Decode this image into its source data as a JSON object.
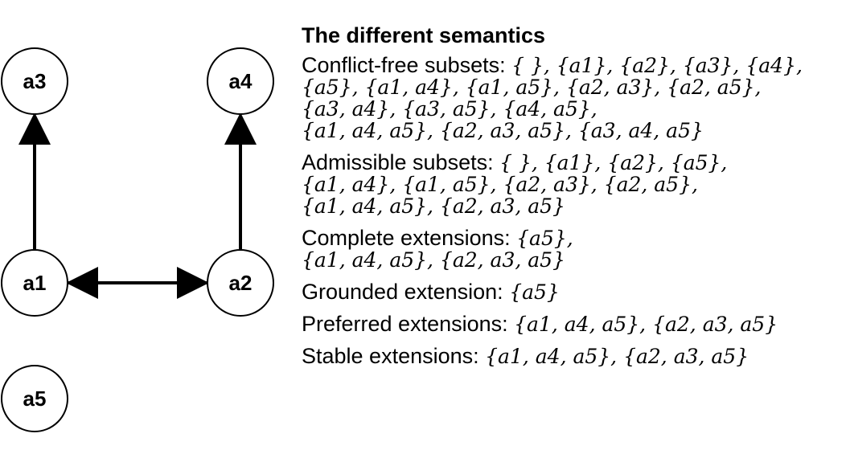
{
  "graph": {
    "nodes": [
      {
        "id": "a1",
        "label": "a1"
      },
      {
        "id": "a2",
        "label": "a2"
      },
      {
        "id": "a3",
        "label": "a3"
      },
      {
        "id": "a4",
        "label": "a4"
      },
      {
        "id": "a5",
        "label": "a5"
      }
    ],
    "edges": [
      {
        "from": "a1",
        "to": "a3"
      },
      {
        "from": "a2",
        "to": "a4"
      },
      {
        "from": "a1",
        "to": "a2"
      },
      {
        "from": "a2",
        "to": "a1"
      }
    ]
  },
  "panel": {
    "title": "The different semantics",
    "sections": [
      {
        "label": "Conflict-free subsets:",
        "lines": [
          "{ }, {a1}, {a2}, {a3}, {a4},",
          "{a5}, {a1, a4}, {a1, a5}, {a2, a3}, {a2, a5},",
          "{a3, a4}, {a3, a5}, {a4, a5},",
          "{a1, a4, a5}, {a2, a3, a5}, {a3, a4, a5}"
        ]
      },
      {
        "label": "Admissible subsets:",
        "lines": [
          "{ }, {a1}, {a2}, {a5},",
          "{a1, a4}, {a1, a5}, {a2, a3}, {a2, a5},",
          "{a1, a4, a5}, {a2, a3, a5}"
        ]
      },
      {
        "label": "Complete extensions:",
        "lines": [
          "{a5},",
          "{a1, a4, a5}, {a2, a3, a5}"
        ]
      },
      {
        "label": "Grounded extension:",
        "lines": [
          "{a5}"
        ]
      },
      {
        "label": "Preferred extensions:",
        "lines": [
          "{a1, a4, a5}, {a2, a3, a5}"
        ]
      },
      {
        "label": "Stable extensions:",
        "lines": [
          "{a1, a4, a5}, {a2, a3, a5}"
        ]
      }
    ]
  }
}
